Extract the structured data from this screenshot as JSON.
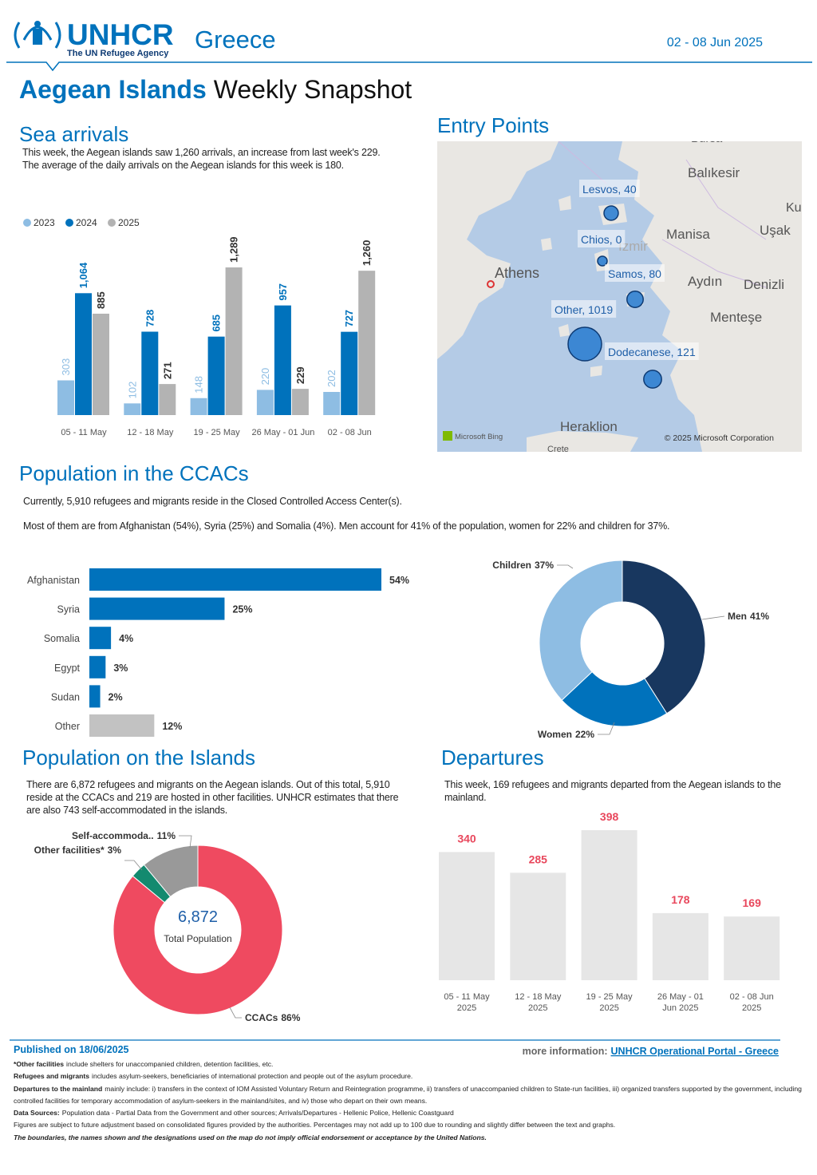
{
  "header": {
    "org": "UNHCR",
    "tagline": "The UN Refugee Agency",
    "country": "Greece",
    "date": "02 - 08 Jun 2025"
  },
  "title": {
    "bold": "Aegean Islands",
    "rest": "Weekly Snapshot"
  },
  "sections": {
    "sea_arrivals": {
      "heading": "Sea arrivals",
      "text": [
        "This week, the Aegean islands saw 1,260 arrivals, an increase from last week's 229.",
        "The average of the daily arrivals on the Aegean islands for this week is 180."
      ]
    },
    "entry_points": {
      "heading": "Entry Points"
    },
    "ccac": {
      "heading": "Population in the CCACs",
      "text": [
        "Currently, 5,910 refugees and migrants reside in the Closed Controlled Access Center(s).",
        "Most of them are from Afghanistan (54%), Syria (25%) and Somalia (4%). Men account for 41% of the population, women for 22% and children for 37%."
      ]
    },
    "islands": {
      "heading": "Population on the Islands",
      "text": "There are 6,872 refugees and migrants on the Aegean islands. Out of this total, 5,910 reside at the CCACs and 219 are hosted in other facilities. UNHCR estimates that there are also 743 self-accommodated in the islands."
    },
    "departures": {
      "heading": "Departures",
      "text": "This week, 169 refugees and migrants departed from the Aegean islands to the mainland."
    }
  },
  "map": {
    "places": [
      "Bursa",
      "Balıkesir",
      "Ku",
      "Uşak",
      "Manisa",
      "İzmir",
      "Athens",
      "Aydın",
      "Denizli",
      "Menteşe",
      "Heraklion",
      "Crete"
    ],
    "credits": [
      "Microsoft Bing",
      "© 2025 Microsoft Corporation"
    ]
  },
  "chart_data": [
    {
      "type": "grouped-bar",
      "categories": [
        "05 - 11 May",
        "12 - 18 May",
        "19 - 25 May",
        "26 May - 01 Jun",
        "02 - 08 Jun"
      ],
      "series": [
        {
          "name": "2023",
          "color": "#8ebde3",
          "label_color": "#8ebde3",
          "values": [
            303,
            102,
            148,
            220,
            202
          ]
        },
        {
          "name": "2024",
          "color": "#0072bc",
          "label_color": "#0072bc",
          "values": [
            1064,
            728,
            685,
            957,
            727
          ],
          "value_labels": [
            "1,064",
            "728",
            "685",
            "957",
            "727"
          ]
        },
        {
          "name": "2025",
          "color": "#b3b3b3",
          "label_color": "#333333",
          "values": [
            885,
            271,
            1289,
            229,
            1260
          ],
          "value_labels": [
            "885",
            "271",
            "1,289",
            "229",
            "1,260"
          ]
        }
      ],
      "legend": "top-left"
    },
    {
      "type": "bubble-map",
      "values": [
        40,
        0,
        80,
        1019,
        121
      ],
      "value_labels": [
        "Lesvos, 40",
        "Chios, 0",
        "Samos, 80",
        "Other, 1019",
        "Dodecanese, 121"
      ],
      "color": "#2f7fd0"
    },
    {
      "type": "hbar",
      "categories": [
        "Afghanistan",
        "Syria",
        "Somalia",
        "Egypt",
        "Sudan",
        "Other"
      ],
      "values": [
        54,
        25,
        4,
        3,
        2,
        12
      ],
      "value_labels": [
        "54%",
        "25%",
        "4%",
        "3%",
        "2%",
        "12%"
      ],
      "colors": [
        "#0072bc",
        "#0072bc",
        "#0072bc",
        "#0072bc",
        "#0072bc",
        "#c2c2c2"
      ]
    },
    {
      "type": "donut",
      "categories": [
        "Men",
        "Women",
        "Children"
      ],
      "values": [
        41,
        22,
        37
      ],
      "value_labels": [
        "41%",
        "22%",
        "37%"
      ],
      "colors": [
        "#18375f",
        "#0072bc",
        "#8ebde3"
      ]
    },
    {
      "type": "donut",
      "categories": [
        "CCACs",
        "Other facilities*",
        "Self-accommoda.."
      ],
      "values": [
        86,
        3,
        11
      ],
      "value_labels": [
        "86%",
        "3%",
        "11%"
      ],
      "colors": [
        "#ef4a60",
        "#138a6f",
        "#999999"
      ],
      "center_value": "6,872",
      "center_caption": "Total Population"
    },
    {
      "type": "bar",
      "categories": [
        "05 - 11 May 2025",
        "12 - 18 May 2025",
        "19 - 25 May 2025",
        "26 May - 01 Jun 2025",
        "02 - 08 Jun 2025"
      ],
      "values": [
        340,
        285,
        398,
        178,
        169
      ],
      "color": "#e6e6e6",
      "label_color": "#e8475c"
    }
  ],
  "footer": {
    "published": "Published on 18/06/2025",
    "more_label": "more information:",
    "link": "UNHCR Operational Portal - Greece",
    "notes": [
      {
        "lead": "*Other facilities",
        "text": "include shelters for unaccompanied children, detention facilities, etc."
      },
      {
        "lead": "Refugees and migrants",
        "text": "includes asylum-seekers, beneficiaries of international protection and people out of the asylum procedure."
      },
      {
        "lead": "Departures to the mainland",
        "text": "mainly include: i) transfers in the context of IOM Assisted Voluntary Return and Reintegration programme, ii) transfers of unaccompanied children to State-run facilities, iii) organized transfers supported by the government, including controlled facilities for temporary accommodation of asylum-seekers in the mainland/sites, and iv) those who depart on their own means."
      },
      {
        "lead": "Data Sources:",
        "text": "Population data - Partial Data from the Government and other sources; Arrivals/Departures - Hellenic Police, Hellenic Coastguard"
      },
      {
        "text": "Figures are subject to future adjustment based on consolidated figures provided by the authorities. Percentages may not add up to 100 due to rounding and slightly differ between the text and graphs."
      },
      {
        "emphasis": "The boundaries, the names shown and the designations used on the map do not imply official endorsement or acceptance by the United Nations."
      }
    ]
  }
}
